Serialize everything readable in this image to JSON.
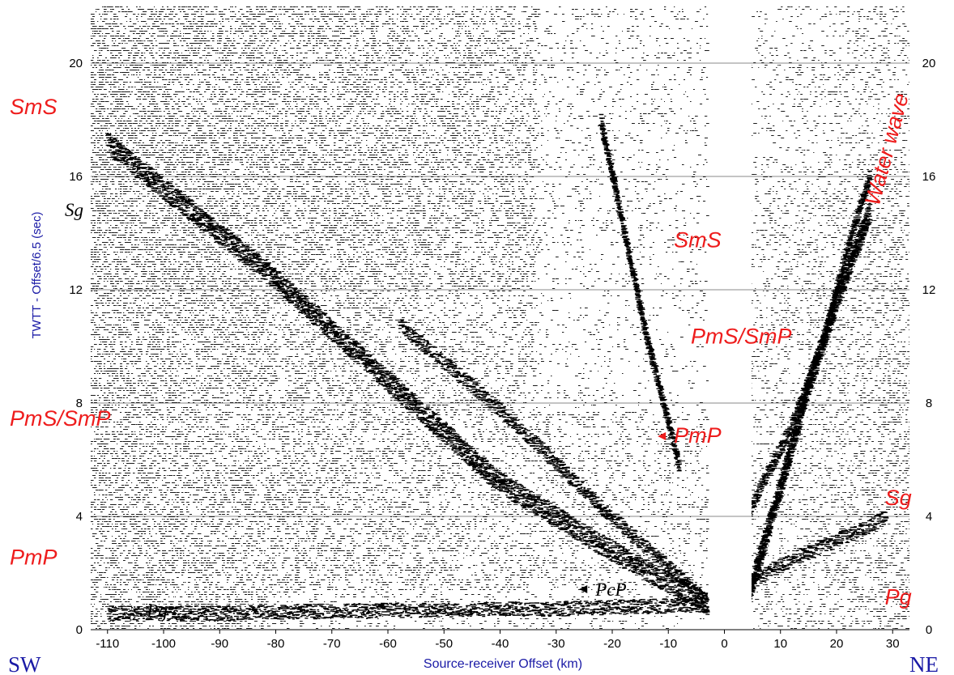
{
  "chart_data": {
    "type": "seismic record section (wiggle traces)",
    "title": "",
    "xlabel": "Source-receiver Offset (km)",
    "ylabel": "TWTT - Offset/6.5 (sec)",
    "xlim": [
      -113,
      33
    ],
    "ylim": [
      0,
      22
    ],
    "x_ticks": [
      -110,
      -100,
      -90,
      -80,
      -70,
      -60,
      -50,
      -40,
      -30,
      -20,
      -10,
      0,
      10,
      20,
      30
    ],
    "y_ticks": [
      0,
      4,
      8,
      12,
      16,
      20
    ],
    "grid": "horizontal lines at y ticks",
    "direction_left": "SW",
    "direction_right": "NE",
    "data_gap_km": [
      -3,
      4
    ],
    "phases": [
      {
        "name": "Pg",
        "color": "black",
        "side": "SW",
        "offset_km": -103,
        "time_s": 0.45
      },
      {
        "name": "PcP",
        "color": "black",
        "side": "SW",
        "offset_km": -23,
        "time_s": 1.2
      },
      {
        "name": "PmP",
        "color": "red",
        "side": "SW",
        "offset_km": -108,
        "time_s": 2.3
      },
      {
        "name": "PmS/SmP",
        "color": "red",
        "side": "SW",
        "offset_km": -108,
        "time_s": 7.2
      },
      {
        "name": "Sg",
        "color": "black",
        "side": "SW",
        "offset_km": -108,
        "time_s": 14.6
      },
      {
        "name": "SmS",
        "color": "red",
        "side": "SW",
        "offset_km": -108,
        "time_s": 18.2
      },
      {
        "name": "PmP",
        "color": "red",
        "side": "SW",
        "offset_km": -9,
        "time_s": 6.6
      },
      {
        "name": "PmS/SmP",
        "color": "red",
        "side": "SW",
        "offset_km": -6,
        "time_s": 10.1
      },
      {
        "name": "SmS",
        "color": "red",
        "side": "SW",
        "offset_km": -9,
        "time_s": 13.5
      },
      {
        "name": "Pg",
        "color": "red",
        "side": "NE",
        "offset_km": 31,
        "time_s": 0.9
      },
      {
        "name": "Sg",
        "color": "red",
        "side": "NE",
        "offset_km": 31,
        "time_s": 4.4
      },
      {
        "name": "Water wave",
        "color": "red",
        "side": "NE",
        "offset_km": 29,
        "time_s": 15.5
      }
    ],
    "events": [
      {
        "name": "Pg (SW)",
        "points": [
          [
            -3,
            0.9
          ],
          [
            -30,
            0.75
          ],
          [
            -60,
            0.7
          ],
          [
            -90,
            0.6
          ],
          [
            -110,
            0.6
          ]
        ]
      },
      {
        "name": "PmP (SW)",
        "points": [
          [
            -3,
            0.9
          ],
          [
            -20,
            2.8
          ],
          [
            -40,
            5.2
          ],
          [
            -60,
            8.8
          ],
          [
            -80,
            12.4
          ],
          [
            -95,
            14.8
          ],
          [
            -110,
            17.2
          ]
        ]
      },
      {
        "name": "PmS/SmP (SW)",
        "points": [
          [
            -3,
            1.0
          ],
          [
            -20,
            4.0
          ],
          [
            -40,
            7.8
          ],
          [
            -58,
            10.8
          ]
        ]
      },
      {
        "name": "SmS (SW)",
        "points": [
          [
            -8,
            5.8
          ],
          [
            -14,
            10.5
          ],
          [
            -19,
            15.2
          ],
          [
            -22,
            18.0
          ]
        ]
      },
      {
        "name": "Water wave (NE)",
        "points": [
          [
            4,
            1.0
          ],
          [
            10,
            5.0
          ],
          [
            15,
            8.6
          ],
          [
            20,
            11.6
          ],
          [
            26,
            14.8
          ]
        ]
      },
      {
        "name": "Sg (NE)",
        "points": [
          [
            4,
            4.0
          ],
          [
            12,
            7.2
          ],
          [
            18,
            10.4
          ],
          [
            22,
            13.5
          ],
          [
            26,
            16.0
          ]
        ]
      },
      {
        "name": "Pg (NE)",
        "points": [
          [
            4,
            1.6
          ],
          [
            10,
            2.3
          ],
          [
            18,
            3.0
          ],
          [
            24,
            3.5
          ],
          [
            29,
            4.0
          ]
        ]
      }
    ]
  }
}
